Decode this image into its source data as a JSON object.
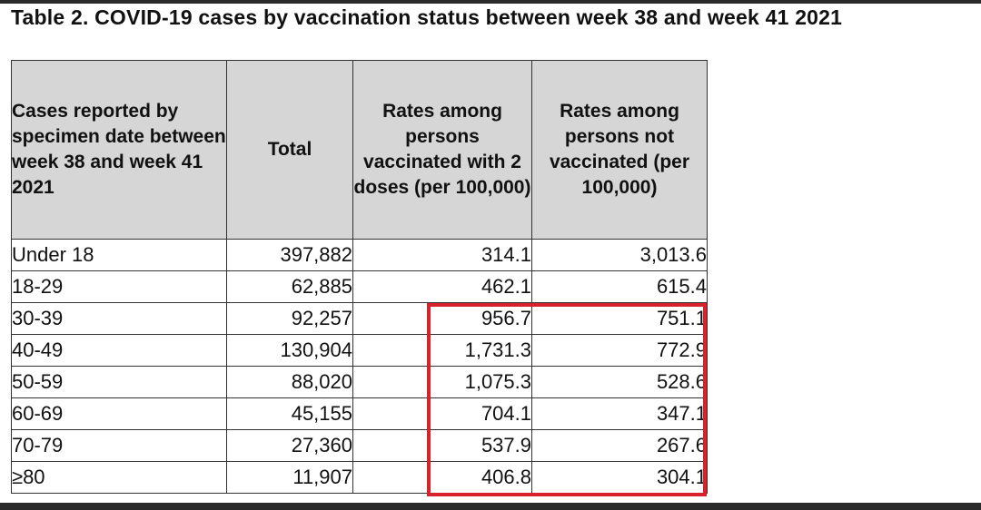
{
  "title": "Table 2. COVID-19 cases by vaccination status between week 38 and week 41 2021",
  "headers": {
    "cases_reported": "Cases reported by specimen date between week 38 and week 41 2021",
    "total": "Total",
    "rates_vaccinated": "Rates among persons vaccinated with 2 doses (per 100,000)",
    "rates_not_vaccinated": "Rates among persons not vaccinated (per 100,000)"
  },
  "rows": [
    {
      "age": "Under 18",
      "total": "397,882",
      "vaccinated": "314.1",
      "not_vaccinated": "3,013.6"
    },
    {
      "age": "18-29",
      "total": "62,885",
      "vaccinated": "462.1",
      "not_vaccinated": "615.4"
    },
    {
      "age": "30-39",
      "total": "92,257",
      "vaccinated": "956.7",
      "not_vaccinated": "751.1"
    },
    {
      "age": "40-49",
      "total": "130,904",
      "vaccinated": "1,731.3",
      "not_vaccinated": "772.9"
    },
    {
      "age": "50-59",
      "total": "88,020",
      "vaccinated": "1,075.3",
      "not_vaccinated": "528.6"
    },
    {
      "age": "60-69",
      "total": "45,155",
      "vaccinated": "704.1",
      "not_vaccinated": "347.1"
    },
    {
      "age": "70-79",
      "total": "27,360",
      "vaccinated": "537.9",
      "not_vaccinated": "267.6"
    },
    {
      "age": "≥80",
      "total": "11,907",
      "vaccinated": "406.8",
      "not_vaccinated": "304.1"
    }
  ],
  "colors": {
    "header_background": "#d6d6d6",
    "highlight_border": "#d6222a",
    "frame_bars": "#2a2a2a"
  }
}
